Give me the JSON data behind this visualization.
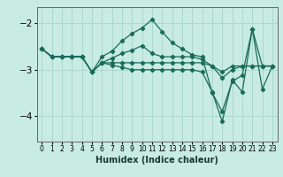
{
  "xlabel": "Humidex (Indice chaleur)",
  "xlim": [
    -0.5,
    23.5
  ],
  "ylim": [
    -4.55,
    -1.65
  ],
  "yticks": [
    -4,
    -3,
    -2
  ],
  "xticks": [
    0,
    1,
    2,
    3,
    4,
    5,
    6,
    7,
    8,
    9,
    10,
    11,
    12,
    13,
    14,
    15,
    16,
    17,
    18,
    19,
    20,
    21,
    22,
    23
  ],
  "background_color": "#c8ebe4",
  "grid_color": "#a8d5cc",
  "line_color": "#1a6b5a",
  "lines": [
    {
      "x": [
        0,
        1,
        2,
        3,
        4,
        5,
        6,
        7,
        8,
        9,
        10,
        11,
        12,
        13,
        14,
        15,
        16,
        17,
        18,
        19,
        20,
        21,
        22,
        23
      ],
      "y": [
        -2.55,
        -2.72,
        -2.72,
        -2.72,
        -2.72,
        -3.05,
        -2.72,
        -2.6,
        -2.38,
        -2.22,
        -2.1,
        -1.92,
        -2.18,
        -2.42,
        -2.55,
        -2.68,
        -2.72,
        -3.5,
        -3.9,
        -3.25,
        -3.12,
        -2.12,
        -2.92,
        -2.92
      ]
    },
    {
      "x": [
        0,
        1,
        2,
        3,
        4,
        5,
        6,
        7,
        8,
        9,
        10,
        11,
        12,
        13,
        14,
        15,
        16,
        17,
        18,
        19,
        20,
        21,
        22,
        23
      ],
      "y": [
        -2.55,
        -2.72,
        -2.72,
        -2.72,
        -2.72,
        -3.05,
        -2.85,
        -2.75,
        -2.65,
        -2.58,
        -2.48,
        -2.65,
        -2.72,
        -2.72,
        -2.72,
        -2.72,
        -2.78,
        -2.92,
        -3.18,
        -3.0,
        -2.92,
        -2.92,
        -2.92,
        -2.92
      ]
    },
    {
      "x": [
        0,
        1,
        2,
        3,
        4,
        5,
        6,
        7,
        8,
        9,
        10,
        11,
        12,
        13,
        14,
        15,
        16,
        17,
        18,
        19,
        20,
        21,
        22,
        23
      ],
      "y": [
        -2.55,
        -2.72,
        -2.72,
        -2.72,
        -2.72,
        -3.05,
        -2.85,
        -2.85,
        -2.85,
        -2.85,
        -2.85,
        -2.85,
        -2.85,
        -2.85,
        -2.85,
        -2.85,
        -2.85,
        -2.92,
        -3.05,
        -2.92,
        -2.92,
        -2.92,
        -2.92,
        -2.92
      ]
    },
    {
      "x": [
        0,
        1,
        2,
        3,
        4,
        5,
        6,
        7,
        8,
        9,
        10,
        11,
        12,
        13,
        14,
        15,
        16,
        17,
        18,
        19,
        20,
        21,
        22,
        23
      ],
      "y": [
        -2.55,
        -2.72,
        -2.72,
        -2.72,
        -2.72,
        -3.05,
        -2.85,
        -2.9,
        -2.95,
        -3.0,
        -3.0,
        -3.0,
        -3.0,
        -3.0,
        -3.0,
        -3.0,
        -3.05,
        -3.48,
        -4.12,
        -3.22,
        -3.48,
        -2.12,
        -3.42,
        -2.92
      ]
    }
  ]
}
